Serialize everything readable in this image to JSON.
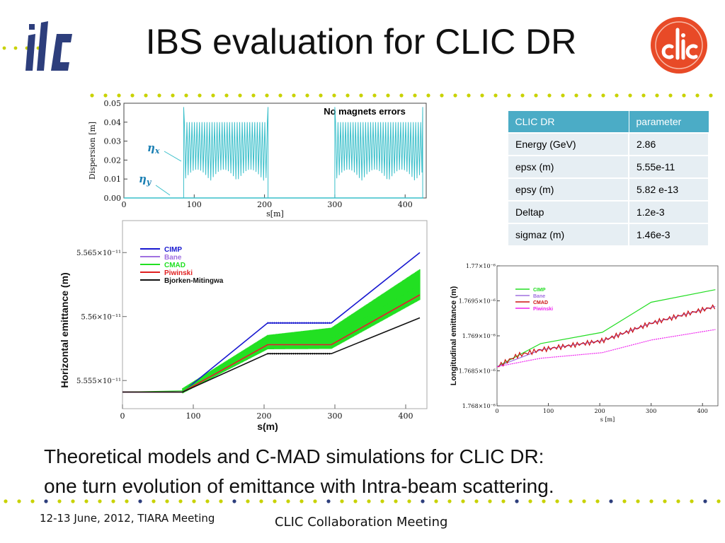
{
  "slide": {
    "title": "IBS evaluation for CLIC DR",
    "logo_left": "ilc",
    "logo_right": "clic",
    "caption_line1": "Theoretical models and C-MAD simulations for CLIC DR:",
    "caption_line2": "one turn evolution of emittance with Intra-beam scattering.",
    "footer_left": "12-13 June, 2012, TIARA Meeting",
    "footer_center": "CLIC Collaboration Meeting",
    "colors": {
      "dot_green": "#c8d200",
      "dot_blue": "#2d3e7c",
      "table_header": "#4bacc6",
      "clic_red": "#e84a27"
    }
  },
  "table": {
    "headers": [
      "CLIC DR",
      "parameter"
    ],
    "rows": [
      [
        "Energy (GeV)",
        "2.86"
      ],
      [
        "epsx (m)",
        "5.55e-11"
      ],
      [
        "epsy (m)",
        "5.82 e-13"
      ],
      [
        "Deltap",
        "1.2e-3"
      ],
      [
        "sigmaz (m)",
        "1.46e-3"
      ]
    ]
  },
  "chart_data": [
    {
      "type": "line",
      "title": "No magnets errors",
      "xlabel": "s[m]",
      "ylabel": "Dispersion [m]",
      "xlim": [
        0,
        430
      ],
      "ylim": [
        0,
        0.05
      ],
      "xticks": [
        "0",
        "100",
        "200",
        "300",
        "400"
      ],
      "yticks": [
        "0.00",
        "0.01",
        "0.02",
        "0.03",
        "0.04",
        "0.05"
      ],
      "series": [
        {
          "name": "ηx",
          "color": "#39bfca",
          "note_segments": [
            [
              85,
              205
            ],
            [
              300,
              425
            ]
          ],
          "peak": 0.04,
          "low": 0.01
        },
        {
          "name": "ηy",
          "color": "#39bfca",
          "value": 0.0
        }
      ]
    },
    {
      "type": "line",
      "xlabel": "s(m)",
      "ylabel": "Horizontal emittance (m)",
      "xlim": [
        0,
        430
      ],
      "ylim": [
        5.5528e-11,
        5.5675e-11
      ],
      "xticks": [
        "0",
        "100",
        "200",
        "300",
        "400"
      ],
      "yticks": [
        "5.555×10⁻¹¹",
        "5.56×10⁻¹¹",
        "5.565×10⁻¹¹"
      ],
      "ytick_values": [
        5.555e-11,
        5.56e-11,
        5.565e-11
      ],
      "series": [
        {
          "name": "CIMP",
          "color": "#1818d0",
          "x": [
            0,
            85,
            205,
            295,
            420
          ],
          "y": [
            5.5541e-11,
            5.5541e-11,
            5.5595e-11,
            5.5595e-11,
            5.565e-11
          ]
        },
        {
          "name": "Bane",
          "color": "#a070e0",
          "x": [
            0,
            85,
            205,
            295,
            420
          ],
          "y": [
            5.5541e-11,
            5.5541e-11,
            5.5578e-11,
            5.5578e-11,
            5.5617e-11
          ]
        },
        {
          "name": "CMAD",
          "color": "#22e022",
          "x": [
            0,
            85,
            205,
            295,
            420
          ],
          "y": [
            5.5541e-11,
            5.5542e-11,
            5.558e-11,
            5.5583e-11,
            5.5625e-11
          ]
        },
        {
          "name": "Piwinski",
          "color": "#e02020",
          "x": [
            0,
            85,
            205,
            295,
            420
          ],
          "y": [
            5.5541e-11,
            5.5541e-11,
            5.5578e-11,
            5.5578e-11,
            5.5617e-11
          ]
        },
        {
          "name": "Bjorken-Mitingwa",
          "color": "#111111",
          "x": [
            0,
            85,
            205,
            295,
            420
          ],
          "y": [
            5.5541e-11,
            5.5541e-11,
            5.5571e-11,
            5.5571e-11,
            5.5599e-11
          ]
        }
      ]
    },
    {
      "type": "line",
      "xlabel": "s [m]",
      "ylabel": "Longitudinal emittance (m)",
      "xlim": [
        0,
        430
      ],
      "ylim": [
        1.768e-06,
        1.77e-06
      ],
      "xticks": [
        "0",
        "100",
        "200",
        "300",
        "400"
      ],
      "yticks": [
        "1.768×10⁻⁶",
        "1.7685×10⁻⁶",
        "1.769×10⁻⁶",
        "1.7695×10⁻⁶",
        "1.77×10⁻⁶"
      ],
      "ytick_values": [
        1.768e-06,
        1.7685e-06,
        1.769e-06,
        1.7695e-06,
        1.77e-06
      ],
      "series": [
        {
          "name": "CIMP",
          "color": "#22dd22",
          "x": [
            0,
            85,
            205,
            300,
            425
          ],
          "y": [
            1.76856e-06,
            1.76889e-06,
            1.76905e-06,
            1.76948e-06,
            1.76966e-06
          ]
        },
        {
          "name": "Bane",
          "color": "#a070e0",
          "x": [
            0,
            85,
            205,
            300,
            425
          ],
          "y": [
            1.76856e-06,
            1.7688e-06,
            1.76893e-06,
            1.76918e-06,
            1.76942e-06
          ]
        },
        {
          "name": "CMAD",
          "color": "#cc1111",
          "x": [
            0,
            40,
            85,
            205,
            300,
            425
          ],
          "y": [
            1.76856e-06,
            1.76872e-06,
            1.7688e-06,
            1.76893e-06,
            1.76918e-06,
            1.76942e-06
          ]
        },
        {
          "name": "Piwinski",
          "color": "#ee22ee",
          "x": [
            0,
            85,
            205,
            300,
            425
          ],
          "y": [
            1.76856e-06,
            1.76868e-06,
            1.76876e-06,
            1.76894e-06,
            1.76909e-06
          ]
        }
      ]
    }
  ]
}
